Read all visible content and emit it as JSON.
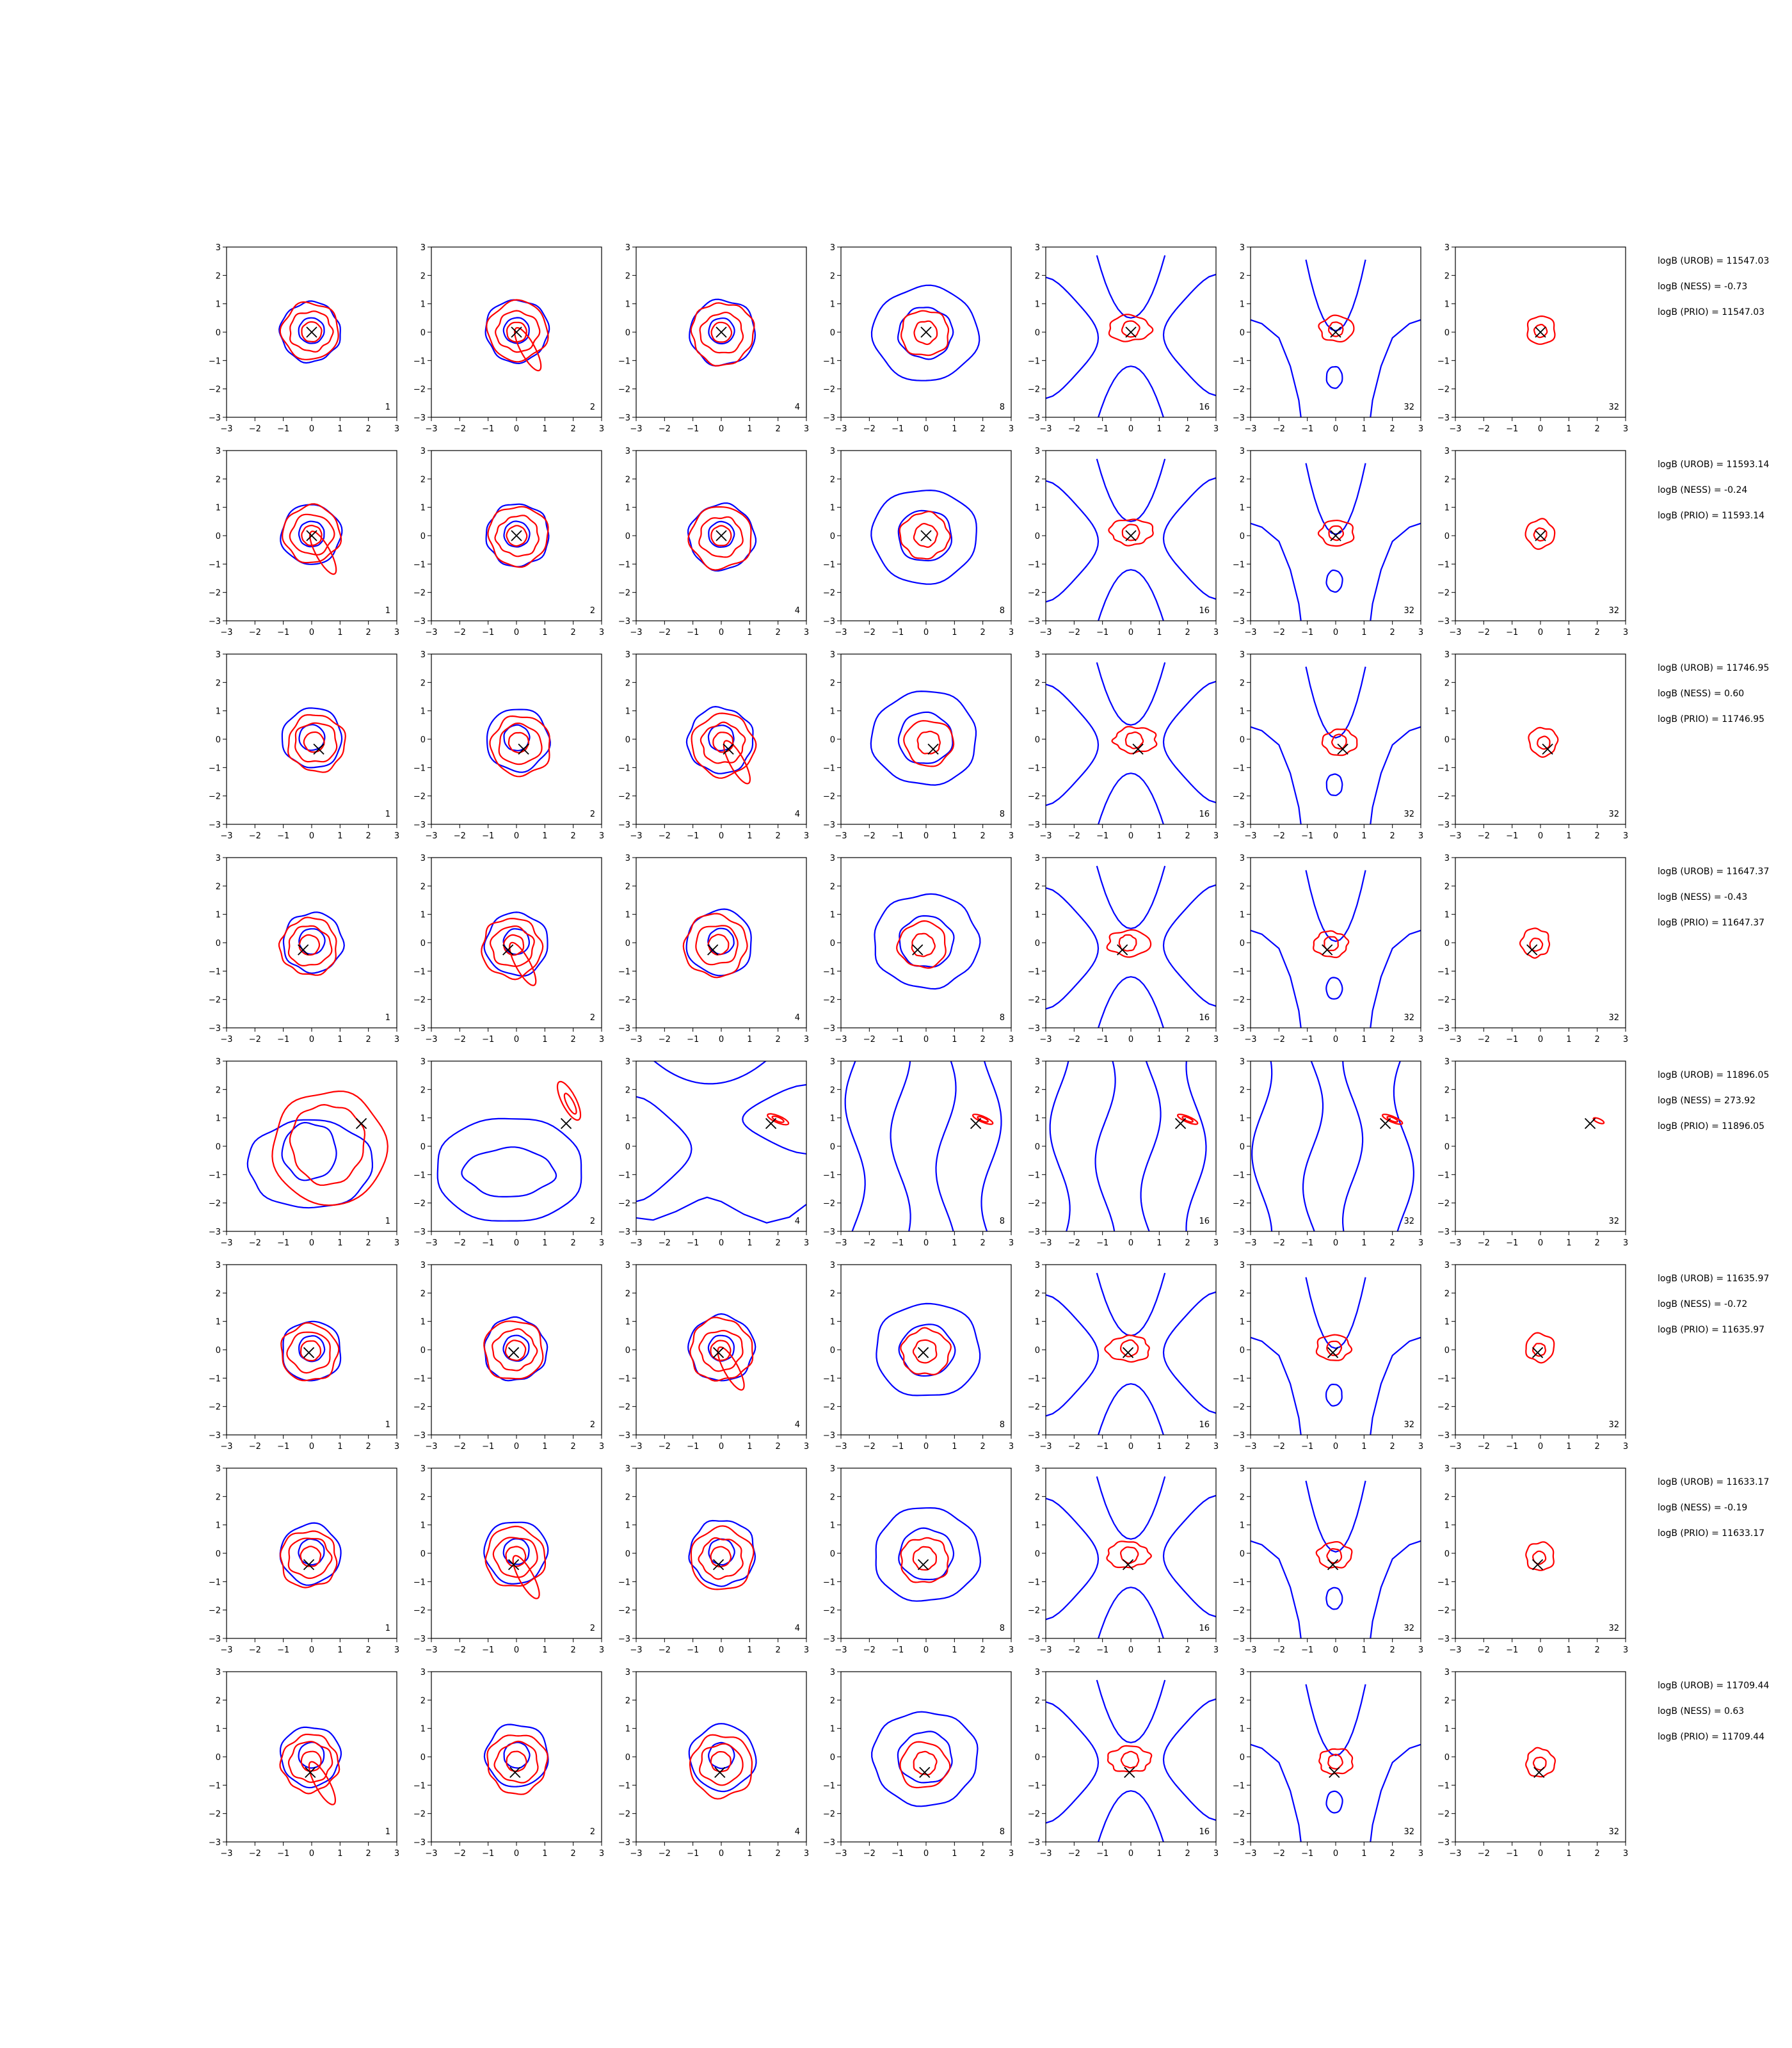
{
  "figure": {
    "panel_count_labels": [
      "1",
      "2",
      "4",
      "8",
      "16",
      "32",
      "32"
    ],
    "rows": [
      {
        "marker": [
          0,
          0
        ],
        "annotations": [
          "logB (UROB) = 11547.03",
          "logB (NESS) = -0.73",
          "logB (PRIO) = 11547.03"
        ]
      },
      {
        "marker": [
          0,
          0
        ],
        "annotations": [
          "logB (UROB) = 11593.14",
          "logB (NESS) = -0.24",
          "logB (PRIO) = 11593.14"
        ]
      },
      {
        "marker": [
          0.25,
          -0.35
        ],
        "annotations": [
          "logB (UROB) = 11746.95",
          "logB (NESS) = 0.60",
          "logB (PRIO) = 11746.95"
        ]
      },
      {
        "marker": [
          -0.3,
          -0.25
        ],
        "annotations": [
          "logB (UROB) = 11647.37",
          "logB (NESS) = -0.43",
          "logB (PRIO) = 11647.37"
        ]
      },
      {
        "marker": [
          1.75,
          0.8
        ],
        "annotations": [
          "logB (UROB) = 11896.05",
          "logB (NESS) = 273.92",
          "logB (PRIO) = 11896.05"
        ]
      },
      {
        "marker": [
          -0.1,
          -0.1
        ],
        "annotations": [
          "logB (UROB) = 11635.97",
          "logB (NESS) = -0.72",
          "logB (PRIO) = 11635.97"
        ]
      },
      {
        "marker": [
          -0.1,
          -0.4
        ],
        "annotations": [
          "logB (UROB) = 11633.17",
          "logB (NESS) = -0.19",
          "logB (PRIO) = 11633.17"
        ]
      },
      {
        "marker": [
          -0.05,
          -0.55
        ],
        "annotations": [
          "logB (UROB) = 11709.44",
          "logB (NESS) = 0.63",
          "logB (PRIO) = 11709.44"
        ]
      }
    ]
  },
  "chart_data": {
    "type": "contour",
    "grid_rows": 8,
    "grid_cols": 7,
    "xlim": [
      -3,
      3
    ],
    "ylim": [
      -3,
      3
    ],
    "xticks": [
      "−3",
      "−2",
      "−1",
      "0",
      "1",
      "2",
      "3"
    ],
    "yticks": [
      "−3",
      "−2",
      "−1",
      "0",
      "1",
      "2",
      "3"
    ],
    "series_colors": {
      "blue_contours": "#0000ff",
      "red_contours": "#ff0000",
      "marker": "#000000"
    },
    "grid": false,
    "legend": "none"
  }
}
